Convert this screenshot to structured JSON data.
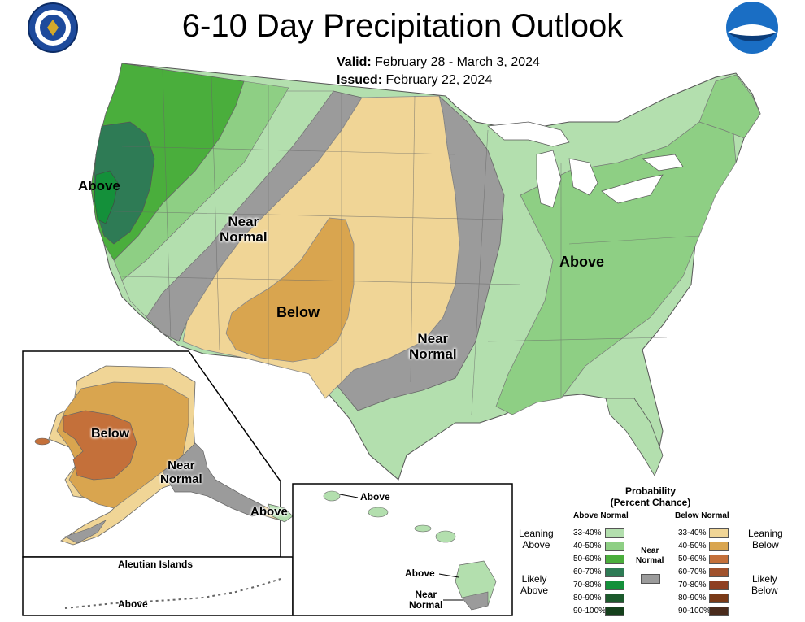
{
  "title": "6-10 Day Precipitation Outlook",
  "valid_label": "Valid:",
  "valid_dates": "February 28 - March 3, 2024",
  "issued_label": "Issued:",
  "issued_date": "February 22, 2024",
  "logos": {
    "commerce_seal": "department-of-commerce-seal",
    "noaa": "NOAA"
  },
  "map_labels": {
    "west_above": "Above",
    "near_normal_west": "Near\nNormal",
    "below_southwest": "Below",
    "near_normal_south": "Near\nNormal",
    "east_above": "Above"
  },
  "alaska_labels": {
    "below": "Below",
    "near_normal": "Near\nNormal",
    "above": "Above"
  },
  "aleutian": {
    "title": "Aleutian Islands",
    "label": "Above"
  },
  "hawaii_labels": {
    "above_top": "Above",
    "above_big_island": "Above",
    "near_normal": "Near\nNormal"
  },
  "legend": {
    "title": "Probability\n(Percent Chance)",
    "above_header": "Above Normal",
    "below_header": "Below Normal",
    "near_label": "Near\nNormal",
    "leaning_above": "Leaning\nAbove",
    "likely_above": "Likely\nAbove",
    "leaning_below": "Leaning\nBelow",
    "likely_below": "Likely\nBelow",
    "above_rows": [
      {
        "range": "33-40%",
        "color": "#b3dfae"
      },
      {
        "range": "40-50%",
        "color": "#8ecf84"
      },
      {
        "range": "50-60%",
        "color": "#4aae3c"
      },
      {
        "range": "60-70%",
        "color": "#2e7b55"
      },
      {
        "range": "70-80%",
        "color": "#14903a"
      },
      {
        "range": "80-90%",
        "color": "#1c5a2c"
      },
      {
        "range": "90-100%",
        "color": "#15401c"
      }
    ],
    "below_rows": [
      {
        "range": "33-40%",
        "color": "#f0d596"
      },
      {
        "range": "40-50%",
        "color": "#d9a54f"
      },
      {
        "range": "50-60%",
        "color": "#c4703a"
      },
      {
        "range": "60-70%",
        "color": "#a0522d"
      },
      {
        "range": "70-80%",
        "color": "#8e3f22"
      },
      {
        "range": "80-90%",
        "color": "#7a3a17"
      },
      {
        "range": "90-100%",
        "color": "#4a2b1c"
      }
    ],
    "near_color": "#9b9b9b"
  }
}
